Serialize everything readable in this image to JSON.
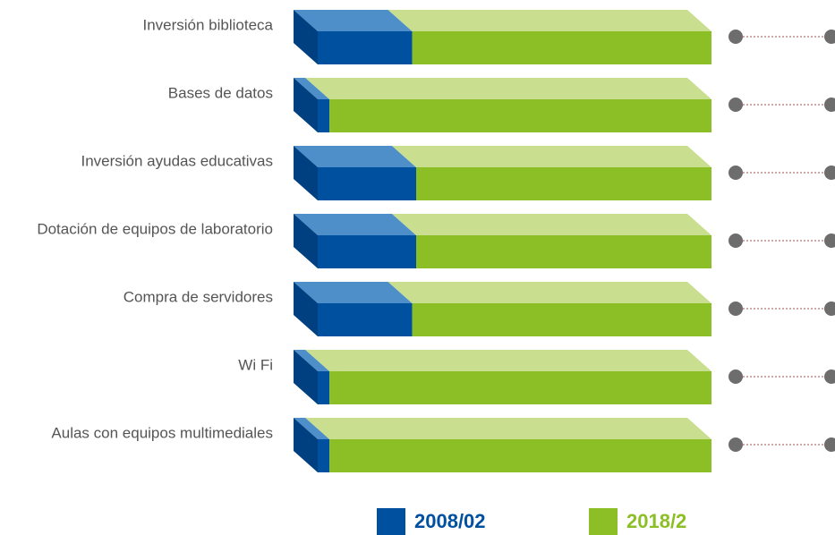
{
  "chart_data": {
    "type": "bar3d-stacked",
    "categories": [
      "Inversión biblioteca",
      "Bases de datos",
      "Inversión ayudas educativas",
      "Dotación de equipos de laboratorio",
      "Compra de servidores",
      "Wi Fi",
      "Aulas con equipos multimediales"
    ],
    "series": [
      {
        "name": "2008/02",
        "color": "#0050a0",
        "top_color": "#4f8fc9",
        "side_color": "#003f80",
        "values": [
          24,
          3,
          25,
          25,
          24,
          3,
          3
        ]
      },
      {
        "name": "2018/2",
        "color": "#8cbf26",
        "top_color": "#c9de8e",
        "values": [
          76,
          97,
          75,
          75,
          76,
          97,
          97
        ]
      }
    ],
    "xlim": [
      0,
      100
    ]
  }
}
